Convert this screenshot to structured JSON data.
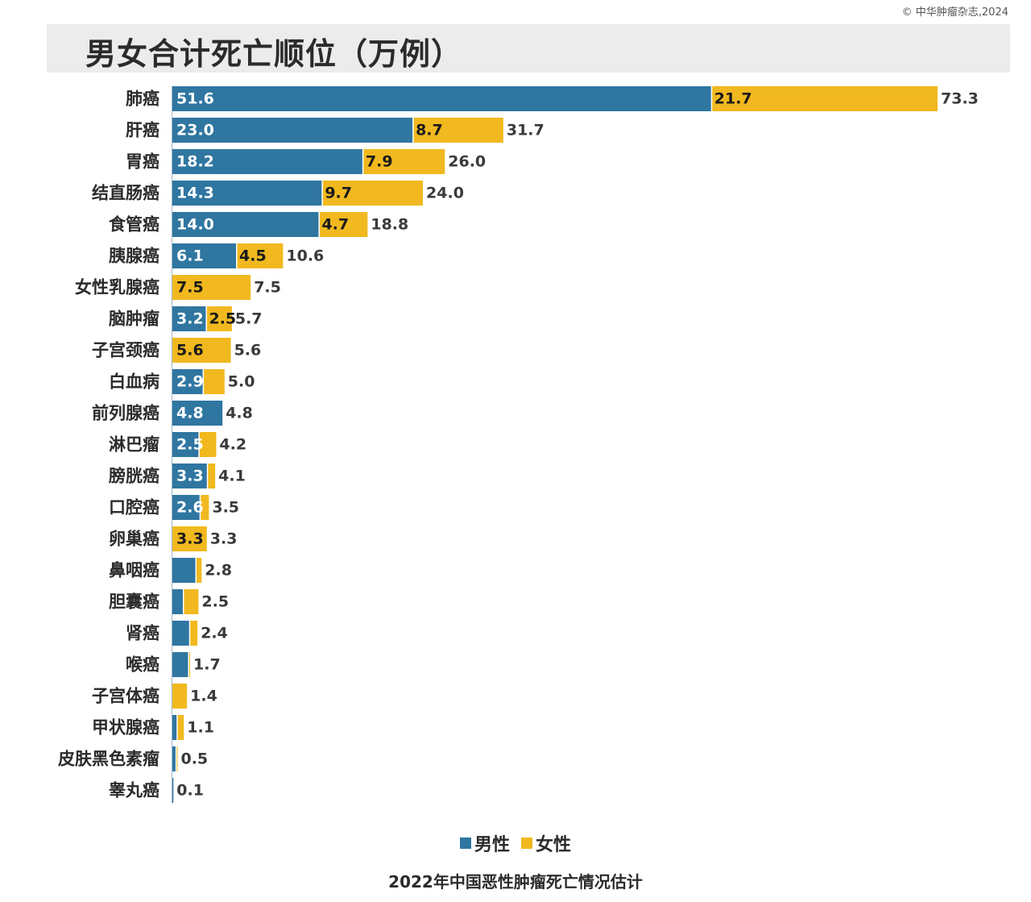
{
  "copyright": "© 中华肿瘤杂志,2024",
  "title": "男女合计死亡顺位（万例）",
  "footer": "2022年中国恶性肿瘤死亡情况估计",
  "colors": {
    "male": "#2f76a1",
    "female": "#f1b91f"
  },
  "legend": [
    {
      "key": "male",
      "label": "男性"
    },
    {
      "key": "female",
      "label": "女性"
    }
  ],
  "chart_data": {
    "type": "bar",
    "orientation": "horizontal",
    "stacked": true,
    "categories": [
      "肺癌",
      "肝癌",
      "胃癌",
      "结直肠癌",
      "食管癌",
      "胰腺癌",
      "女性乳腺癌",
      "脑肿瘤",
      "子宫颈癌",
      "白血病",
      "前列腺癌",
      "淋巴瘤",
      "膀胱癌",
      "口腔癌",
      "卵巢癌",
      "鼻咽癌",
      "胆囊癌",
      "肾癌",
      "喉癌",
      "子宫体癌",
      "甲状腺癌",
      "皮肤黑色素瘤",
      "睾丸癌"
    ],
    "series": [
      {
        "name": "男性",
        "values": [
          51.6,
          23.0,
          18.2,
          14.3,
          14.0,
          6.1,
          0,
          3.2,
          0,
          2.9,
          4.8,
          2.5,
          3.3,
          2.6,
          0,
          2.2,
          1.0,
          1.6,
          1.5,
          0,
          0.4,
          0.3,
          0.1
        ],
        "labels": [
          "51.6",
          "23.0",
          "18.2",
          "14.3",
          "14.0",
          "6.1",
          "",
          "3.2",
          "",
          "2.9",
          "4.8",
          "2.5",
          "3.3",
          "2.6",
          "",
          "",
          "",
          "",
          "",
          "",
          "",
          "",
          ""
        ]
      },
      {
        "name": "女性",
        "values": [
          21.7,
          8.7,
          7.9,
          9.7,
          4.7,
          4.5,
          7.5,
          2.5,
          5.6,
          2.1,
          0,
          1.7,
          0.8,
          0.9,
          3.3,
          0.6,
          1.5,
          0.8,
          0.2,
          1.4,
          0.7,
          0.2,
          0
        ],
        "labels": [
          "21.7",
          "8.7",
          "7.9",
          "9.7",
          "4.7",
          "4.5",
          "7.5",
          "2.5",
          "5.6",
          "",
          "",
          "",
          "",
          "",
          "3.3",
          "",
          "",
          "",
          "",
          "",
          "",
          "",
          ""
        ]
      }
    ],
    "totals": [
      "73.3",
      "31.7",
      "26.0",
      "24.0",
      "18.8",
      "10.6",
      "7.5",
      "5.7",
      "5.6",
      "5.0",
      "4.8",
      "4.2",
      "4.1",
      "3.5",
      "3.3",
      "2.8",
      "2.5",
      "2.4",
      "1.7",
      "1.4",
      "1.1",
      "0.5",
      "0.1"
    ],
    "xlim": [
      0,
      73.3
    ],
    "grid": false
  }
}
